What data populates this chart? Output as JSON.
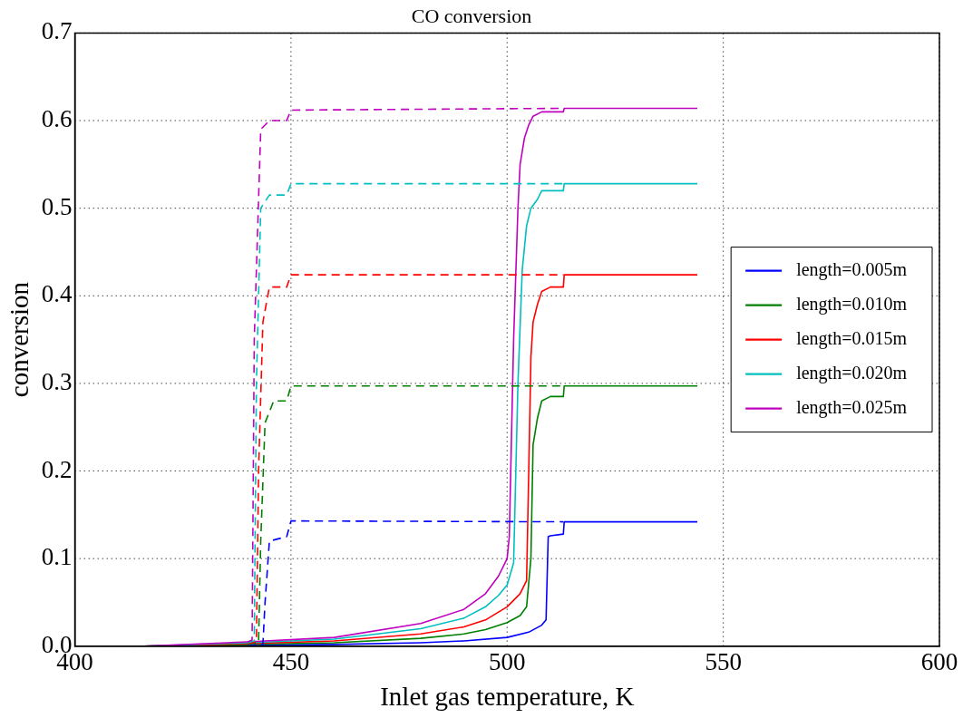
{
  "chart_data": {
    "type": "line",
    "title": "CO conversion",
    "xlabel": "Inlet gas temperature, K",
    "ylabel": "conversion",
    "xlim": [
      400,
      600
    ],
    "xticks": [
      400,
      450,
      500,
      550,
      600
    ],
    "ylim": [
      0,
      0.7
    ],
    "yticks": [
      {
        "value": 0,
        "label": "0.0"
      },
      0.1,
      0.2,
      0.3,
      0.4,
      0.5,
      0.6,
      0.7
    ],
    "grid": true,
    "legend": "right",
    "marker": "none",
    "line_style": "solid",
    "series": [
      {
        "name": "length=0.005m",
        "color": "#0000ff",
        "x": [
          416,
          440,
          460,
          480,
          490,
          500,
          505,
          508,
          509,
          509.5,
          510,
          513,
          513.2,
          544
        ],
        "values": [
          0,
          0.001,
          0.002,
          0.004,
          0.006,
          0.01,
          0.016,
          0.024,
          0.03,
          0.125,
          0.126,
          0.128,
          0.142,
          0.142
        ]
      },
      {
        "name": "length=0.010m",
        "color": "#008000",
        "x": [
          416,
          440,
          460,
          480,
          490,
          495,
          500,
          503,
          504.5,
          505.5,
          506,
          507,
          508,
          510,
          513,
          513.2,
          544
        ],
        "values": [
          0,
          0.002,
          0.004,
          0.009,
          0.014,
          0.019,
          0.027,
          0.035,
          0.045,
          0.1,
          0.23,
          0.26,
          0.28,
          0.285,
          0.285,
          0.297,
          0.297
        ]
      },
      {
        "name": "length=0.015m",
        "color": "#ff0000",
        "x": [
          416,
          440,
          460,
          480,
          490,
          495,
          500,
          503,
          504.5,
          505,
          505.5,
          506,
          507,
          508,
          510,
          513,
          513.2,
          544
        ],
        "values": [
          0,
          0.003,
          0.006,
          0.014,
          0.022,
          0.03,
          0.045,
          0.06,
          0.075,
          0.2,
          0.33,
          0.37,
          0.39,
          0.405,
          0.41,
          0.41,
          0.424,
          0.424
        ]
      },
      {
        "name": "length=0.020m",
        "color": "#00bfbf",
        "x": [
          416,
          440,
          460,
          480,
          490,
          495,
          498,
          500,
          501.5,
          502.5,
          503.5,
          504.5,
          505.5,
          507,
          508,
          513,
          513.2,
          544
        ],
        "values": [
          0,
          0.004,
          0.008,
          0.02,
          0.032,
          0.045,
          0.058,
          0.07,
          0.095,
          0.3,
          0.43,
          0.48,
          0.5,
          0.51,
          0.52,
          0.52,
          0.528,
          0.528
        ]
      },
      {
        "name": "length=0.025m",
        "color": "#bf00bf",
        "x": [
          416,
          440,
          460,
          480,
          490,
          495,
          498,
          500,
          500.5,
          501.5,
          502.5,
          503,
          504,
          505,
          506,
          508,
          513,
          513.2,
          544
        ],
        "values": [
          0,
          0.005,
          0.01,
          0.026,
          0.042,
          0.06,
          0.08,
          0.1,
          0.125,
          0.35,
          0.5,
          0.55,
          0.58,
          0.595,
          0.605,
          0.61,
          0.61,
          0.614,
          0.614
        ]
      },
      {
        "color": "#0000ff",
        "line_style": "dashed",
        "x": [
          440,
          443.5,
          444,
          445,
          449,
          450,
          513
        ],
        "values": [
          0.001,
          0.002,
          0.05,
          0.12,
          0.125,
          0.143,
          0.142
        ]
      },
      {
        "color": "#008000",
        "line_style": "dashed",
        "x": [
          440,
          442.5,
          443,
          444,
          446,
          449,
          450,
          513
        ],
        "values": [
          0.002,
          0.004,
          0.12,
          0.255,
          0.28,
          0.28,
          0.297,
          0.297
        ]
      },
      {
        "color": "#ff0000",
        "line_style": "dashed",
        "x": [
          440,
          442,
          442.5,
          443.5,
          445,
          449,
          450,
          513
        ],
        "values": [
          0.003,
          0.005,
          0.2,
          0.37,
          0.41,
          0.41,
          0.424,
          0.424
        ]
      },
      {
        "color": "#00bfbf",
        "line_style": "dashed",
        "x": [
          440,
          441.5,
          442,
          443,
          445,
          449,
          450,
          513
        ],
        "values": [
          0.004,
          0.006,
          0.3,
          0.5,
          0.515,
          0.515,
          0.528,
          0.528
        ]
      },
      {
        "color": "#bf00bf",
        "line_style": "dashed",
        "x": [
          440,
          441,
          441.5,
          443,
          445,
          449,
          450,
          513
        ],
        "values": [
          0.005,
          0.007,
          0.35,
          0.59,
          0.6,
          0.6,
          0.612,
          0.614
        ]
      }
    ]
  }
}
